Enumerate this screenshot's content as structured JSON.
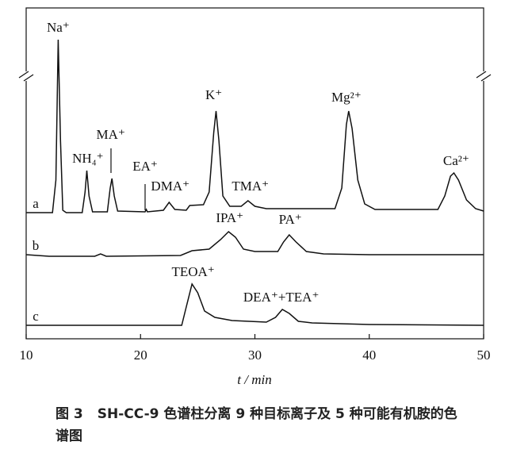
{
  "chart_data": {
    "type": "line",
    "x_label": "t / min",
    "xlim": [
      10,
      50
    ],
    "xticks": [
      10,
      20,
      30,
      40,
      50
    ],
    "ylim": [
      0,
      417
    ],
    "series": [
      {
        "name": "a",
        "color": "#111111",
        "x": [
          10,
          12.3,
          12.6,
          12.8,
          13.0,
          13.2,
          13.5,
          14.9,
          15.15,
          15.3,
          15.5,
          15.8,
          17.1,
          17.35,
          17.5,
          17.7,
          18.0,
          20.4,
          20.5,
          20.6,
          22.0,
          22.5,
          23.0,
          24.0,
          24.3,
          25.5,
          26.0,
          26.4,
          26.6,
          26.85,
          27.2,
          27.8,
          28.8,
          29.4,
          30.0,
          31,
          37.0,
          37.6,
          38.0,
          38.2,
          38.5,
          39.0,
          39.6,
          40.5,
          46.0,
          46.6,
          47.1,
          47.4,
          47.8,
          48.5,
          49.3,
          50
        ],
        "values": [
          159,
          159,
          200,
          377,
          250,
          162,
          159,
          159,
          185,
          212,
          180,
          160,
          160,
          190,
          202,
          180,
          161,
          160,
          163,
          160,
          162,
          172,
          163,
          162,
          168,
          169,
          185,
          260,
          287,
          250,
          180,
          167,
          167,
          174,
          167,
          164,
          164,
          190,
          270,
          287,
          265,
          200,
          170,
          163,
          163,
          180,
          205,
          209,
          200,
          175,
          164,
          161
        ]
      },
      {
        "name": "b",
        "color": "#111111",
        "x": [
          10,
          12,
          16,
          16.5,
          17,
          23.5,
          24.5,
          26.0,
          27.0,
          27.7,
          28.3,
          29.0,
          30,
          32,
          32.5,
          33.0,
          33.6,
          34.5,
          36,
          40,
          45,
          50
        ],
        "values": [
          106,
          104,
          104,
          107,
          104,
          105,
          111,
          113,
          125,
          135,
          128,
          113,
          110,
          110,
          122,
          131,
          122,
          110,
          107,
          106,
          106,
          106
        ]
      },
      {
        "name": "c",
        "color": "#111111",
        "x": [
          10,
          20,
          23.6,
          24.0,
          24.5,
          25.0,
          25.6,
          26.5,
          28,
          31,
          31.8,
          32.4,
          33.0,
          33.8,
          35,
          40,
          50
        ],
        "values": [
          17,
          17,
          17,
          40,
          69,
          58,
          35,
          27,
          23,
          21,
          27,
          37,
          32,
          22,
          20,
          18,
          17
        ]
      }
    ],
    "annotations": [
      {
        "text": "Na⁺",
        "x": 12.8,
        "y": 387
      },
      {
        "text": "NH₄⁺",
        "x": 15.4,
        "y": 222
      },
      {
        "text": "MA⁺",
        "x": 17.4,
        "y": 252
      },
      {
        "text": "EA⁺",
        "x": 20.4,
        "y": 212
      },
      {
        "text": "DMA⁺",
        "x": 22.6,
        "y": 187
      },
      {
        "text": "K⁺",
        "x": 26.4,
        "y": 302
      },
      {
        "text": "TMA⁺",
        "x": 29.6,
        "y": 187
      },
      {
        "text": "Mg²⁺",
        "x": 38.0,
        "y": 299
      },
      {
        "text": "Ca²⁺",
        "x": 47.6,
        "y": 219
      },
      {
        "text": "IPA⁺",
        "x": 27.8,
        "y": 147
      },
      {
        "text": "PA⁺",
        "x": 33.1,
        "y": 145
      },
      {
        "text": "TEOA⁺",
        "x": 24.6,
        "y": 79
      },
      {
        "text": "DEA⁺+TEA⁺",
        "x": 32.3,
        "y": 47
      }
    ]
  },
  "caption": {
    "label": "图 3",
    "text": "SH-CC-9 色谱柱分离 9 种目标离子及 5 种可能有机胺的色谱图"
  }
}
